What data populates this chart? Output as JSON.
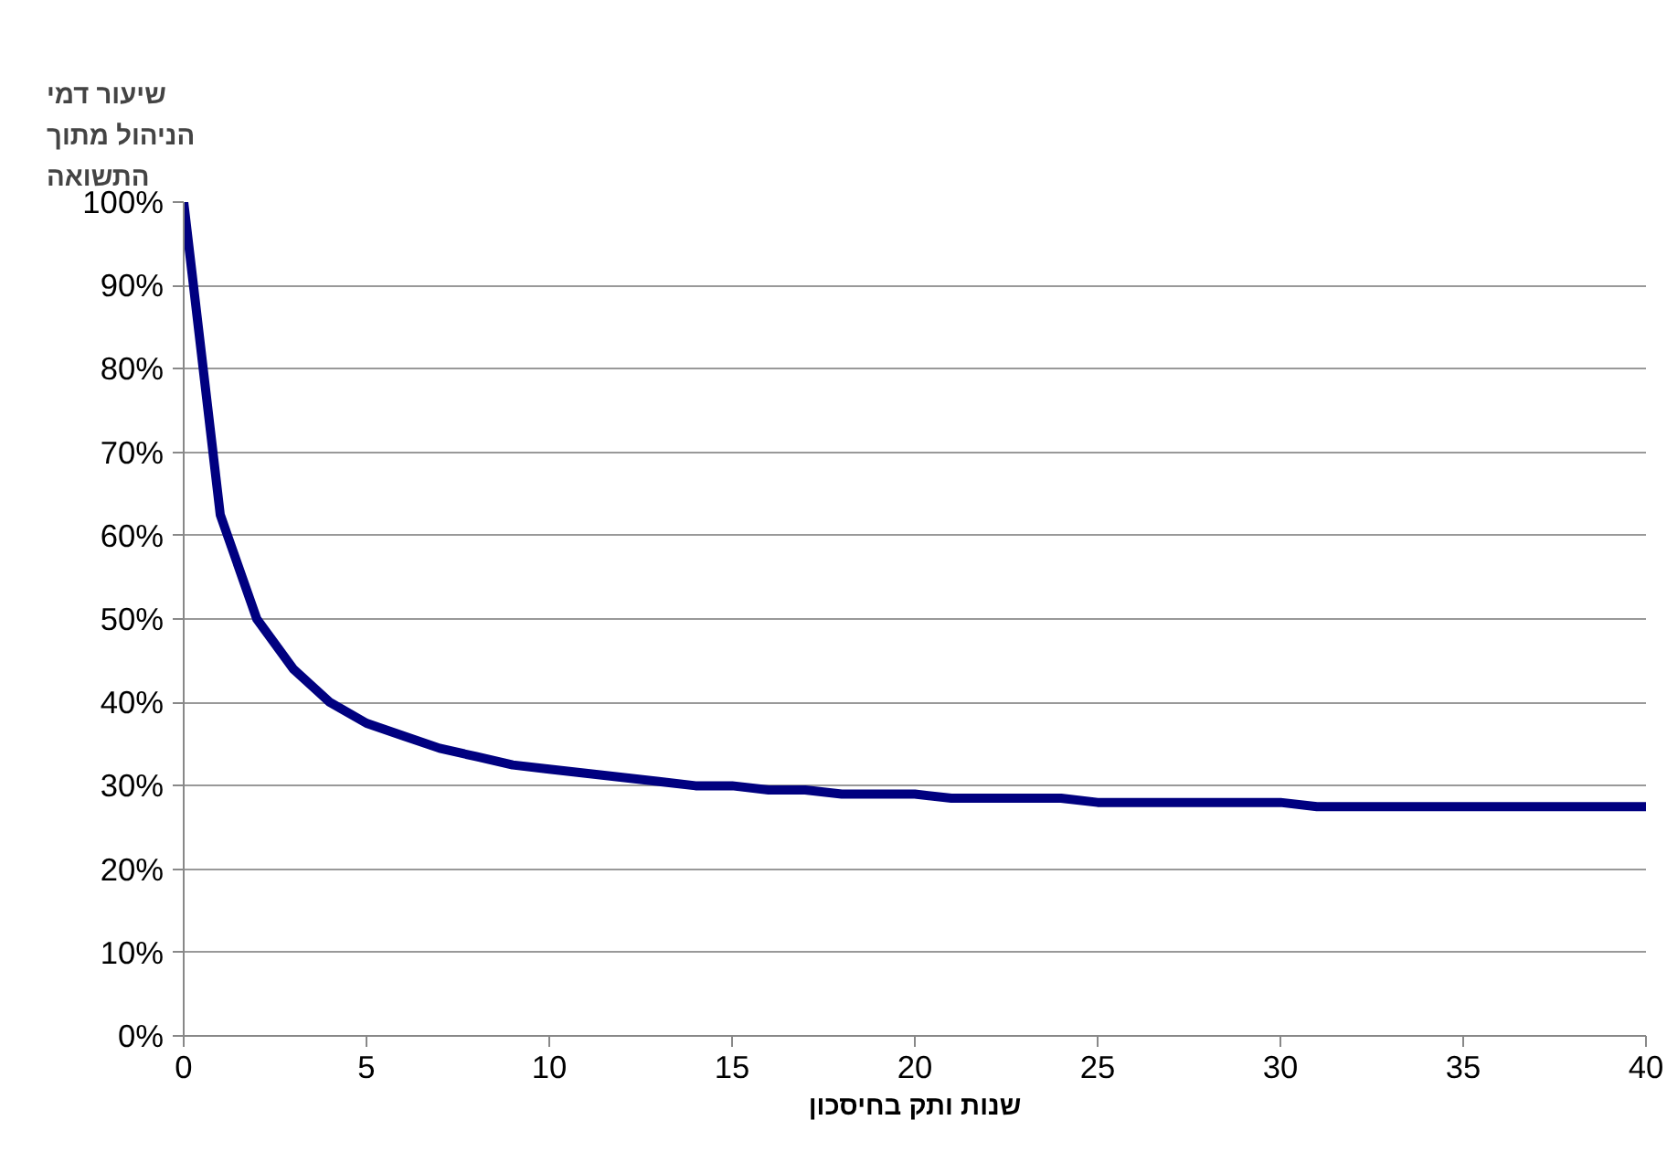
{
  "chart_data": {
    "type": "line",
    "ylabel": "שיעור דמי\nהניהול מתוך\nהתשואה",
    "xlabel": "שנות ותק בחיסכון",
    "x": [
      0,
      1,
      2,
      3,
      4,
      5,
      6,
      7,
      8,
      9,
      10,
      11,
      12,
      13,
      14,
      15,
      16,
      17,
      18,
      19,
      20,
      21,
      22,
      23,
      24,
      25,
      26,
      27,
      28,
      29,
      30,
      31,
      32,
      33,
      34,
      35,
      36,
      37,
      38,
      39,
      40
    ],
    "series": [
      {
        "color": "#000080",
        "values": [
          100,
          62.5,
          50,
          44,
          40,
          37.5,
          36,
          34.5,
          33.5,
          32.5,
          32,
          31.5,
          31,
          30.5,
          30,
          30,
          29.5,
          29.5,
          29,
          29,
          29,
          28.5,
          28.5,
          28.5,
          28.5,
          28,
          28,
          28,
          28,
          28,
          28,
          27.5,
          27.5,
          27.5,
          27.5,
          27.5,
          27.5,
          27.5,
          27.5,
          27.5,
          27.5
        ]
      }
    ],
    "xlim": [
      0,
      40
    ],
    "xticks": [
      0,
      5,
      10,
      15,
      20,
      25,
      30,
      35,
      40
    ],
    "ylim": [
      0,
      100
    ],
    "yticks": [
      {
        "value": 0,
        "label": "0%"
      },
      {
        "value": 10,
        "label": "10%"
      },
      {
        "value": 20,
        "label": "20%"
      },
      {
        "value": 30,
        "label": "30%"
      },
      {
        "value": 40,
        "label": "40%"
      },
      {
        "value": 50,
        "label": "50%"
      },
      {
        "value": 60,
        "label": "60%"
      },
      {
        "value": 70,
        "label": "70%"
      },
      {
        "value": 80,
        "label": "80%"
      },
      {
        "value": 90,
        "label": "90%"
      },
      {
        "value": 100,
        "label": "100%"
      }
    ],
    "grid": "y",
    "marker": "none",
    "line_style": "solid"
  }
}
